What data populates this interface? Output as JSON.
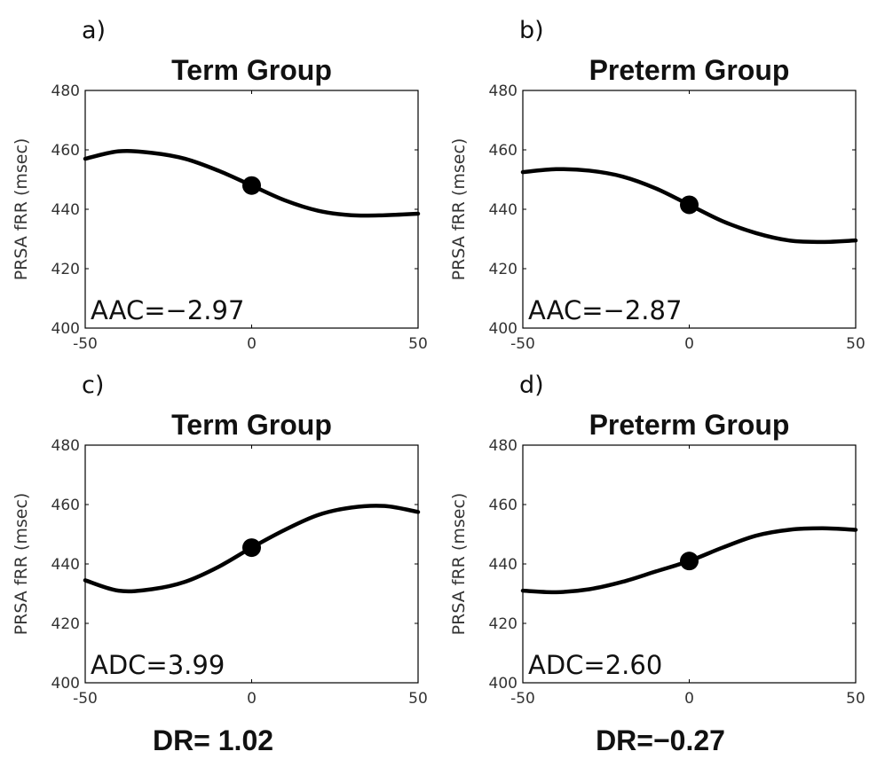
{
  "chart_data": [
    {
      "type": "line",
      "panel_label": "a)",
      "title": "Term Group",
      "xlabel": "",
      "ylabel": "PRSA fRR (msec)",
      "xlim": [
        -50,
        50
      ],
      "ylim": [
        400,
        480
      ],
      "x_ticks": [
        -50,
        0,
        50
      ],
      "y_ticks": [
        400,
        420,
        440,
        460,
        480
      ],
      "annotation": "AAC=−2.97",
      "marker": {
        "x": 0,
        "y": 448
      },
      "series": [
        {
          "x": [
            -50,
            -40,
            -30,
            -20,
            -10,
            0,
            10,
            20,
            30,
            40,
            50
          ],
          "values": [
            457,
            459.5,
            459,
            457,
            453,
            448,
            443,
            439.5,
            438,
            438,
            438.5
          ]
        }
      ]
    },
    {
      "type": "line",
      "panel_label": "b)",
      "title": "Preterm Group",
      "xlabel": "",
      "ylabel": "PRSA fRR (msec)",
      "xlim": [
        -50,
        50
      ],
      "ylim": [
        400,
        480
      ],
      "x_ticks": [
        -50,
        0,
        50
      ],
      "y_ticks": [
        400,
        420,
        440,
        460,
        480
      ],
      "annotation": "AAC=−2.87",
      "marker": {
        "x": 0,
        "y": 441.5
      },
      "series": [
        {
          "x": [
            -50,
            -40,
            -30,
            -20,
            -10,
            0,
            10,
            20,
            30,
            40,
            50
          ],
          "values": [
            452.5,
            453.5,
            453,
            451,
            447,
            441.5,
            436,
            432,
            429.5,
            429,
            429.5
          ]
        }
      ]
    },
    {
      "type": "line",
      "panel_label": "c)",
      "title": "Term Group",
      "xlabel": "",
      "ylabel": "PRSA fRR (msec)",
      "xlim": [
        -50,
        50
      ],
      "ylim": [
        400,
        480
      ],
      "x_ticks": [
        -50,
        0,
        50
      ],
      "y_ticks": [
        400,
        420,
        440,
        460,
        480
      ],
      "annotation": "ADC=3.99",
      "marker": {
        "x": 0,
        "y": 445.5
      },
      "series": [
        {
          "x": [
            -50,
            -40,
            -30,
            -20,
            -10,
            0,
            10,
            20,
            30,
            40,
            50
          ],
          "values": [
            434.5,
            431,
            431.5,
            434,
            439,
            445.5,
            451.5,
            456.5,
            459,
            459.5,
            457.5
          ]
        }
      ]
    },
    {
      "type": "line",
      "panel_label": "d)",
      "title": "Preterm Group",
      "xlabel": "",
      "ylabel": "PRSA fRR (msec)",
      "xlim": [
        -50,
        50
      ],
      "ylim": [
        400,
        480
      ],
      "x_ticks": [
        -50,
        0,
        50
      ],
      "y_ticks": [
        400,
        420,
        440,
        460,
        480
      ],
      "annotation": "ADC=2.60",
      "marker": {
        "x": 0,
        "y": 441
      },
      "series": [
        {
          "x": [
            -50,
            -40,
            -30,
            -20,
            -10,
            0,
            10,
            20,
            30,
            40,
            50
          ],
          "values": [
            431,
            430.5,
            431.5,
            434,
            437.5,
            441,
            445.5,
            449.5,
            451.5,
            452,
            451.5
          ]
        }
      ]
    }
  ],
  "footer": {
    "dr_left": "DR= 1.02",
    "dr_right": "DR=−0.27"
  }
}
